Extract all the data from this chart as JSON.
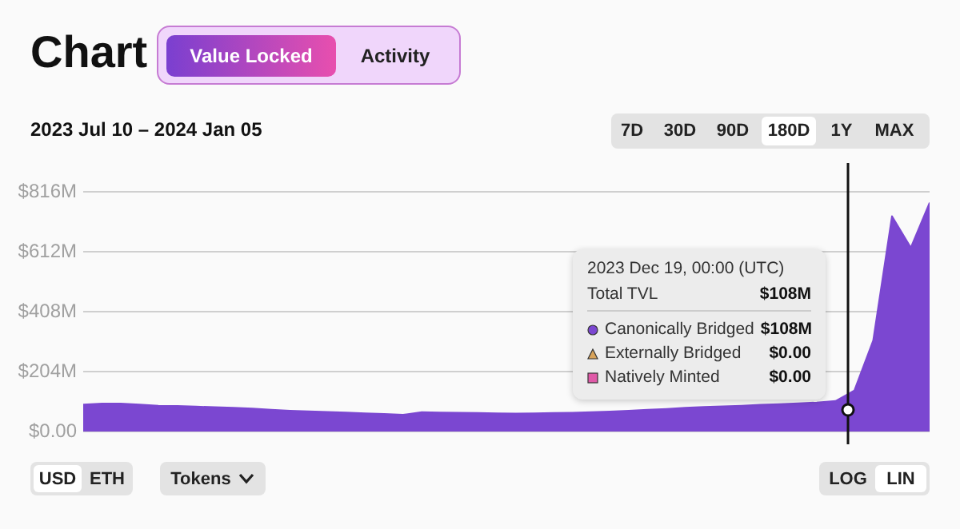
{
  "chart_data": {
    "type": "area",
    "title": "Chart",
    "subtitle": "2023 Jul 10 – 2024 Jan 05",
    "categories": [
      null,
      null,
      null,
      null,
      null,
      null,
      null,
      null,
      null,
      null,
      null,
      null,
      null,
      null,
      null,
      null,
      null,
      null,
      null,
      null,
      null,
      null,
      null,
      null,
      null,
      null,
      null,
      null,
      null,
      null,
      null,
      null,
      null,
      null,
      null,
      null,
      null,
      null,
      null,
      null,
      null,
      null,
      null,
      null,
      null,
      null
    ],
    "series": [
      {
        "color": "#7b47d1",
        "values": [
          92,
          95,
          95,
          92,
          88,
          87,
          85,
          83,
          81,
          78,
          74,
          71,
          69,
          67,
          65,
          62,
          60,
          57,
          66,
          65,
          64,
          63,
          62,
          61,
          62,
          63,
          64,
          66,
          68,
          71,
          74,
          77,
          81,
          84,
          86,
          88,
          91,
          93,
          96,
          99,
          104,
          140,
          310,
          734,
          627,
          780
        ]
      }
    ],
    "ylim": [
      0,
      816
    ],
    "yticks": [
      {
        "value": 0,
        "label": "$0.00"
      },
      {
        "value": 204,
        "label": "$204M"
      },
      {
        "value": 408,
        "label": "$408M"
      },
      {
        "value": 612,
        "label": "$612M"
      },
      {
        "value": 816,
        "label": "$816M"
      }
    ],
    "tick_labels": "y",
    "grid": "y",
    "legend": false,
    "annotations": [
      "Value Locked",
      "Activity",
      "7D",
      "30D",
      "90D",
      "180D",
      "1Y",
      "MAX",
      "USD",
      "ETH",
      "Tokens",
      "LOG",
      "LIN",
      "2023 Dec 19, 00:00 (UTC)",
      "Total TVL",
      "$108M",
      "Canonically Bridged",
      "$108M",
      "Externally Bridged",
      "$0.00",
      "Natively Minted",
      "$0.00"
    ]
  }
}
